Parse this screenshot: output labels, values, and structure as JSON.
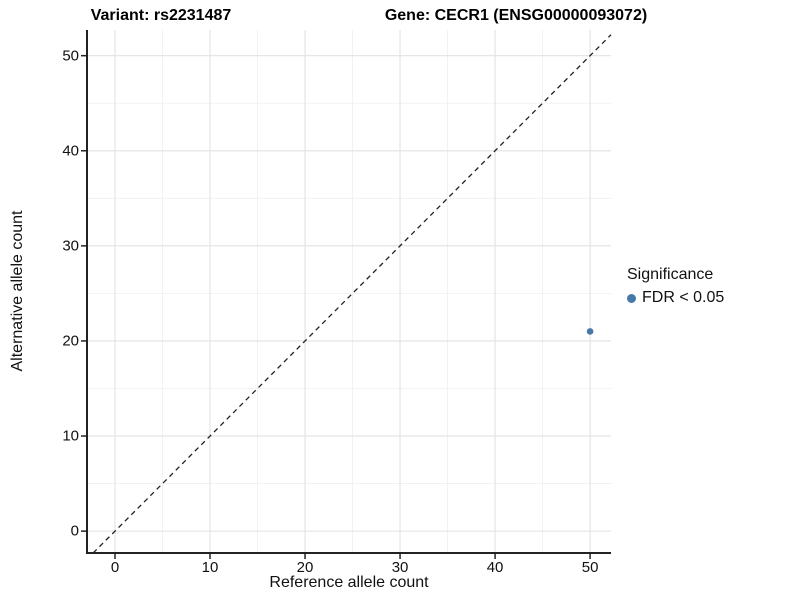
{
  "titles": {
    "variant": "Variant: rs2231487",
    "gene": "Gene: CECR1 (ENSG00000093072)"
  },
  "chart_data": {
    "type": "scatter",
    "title": "Variant: rs2231487   Gene: CECR1 (ENSG00000093072)",
    "xlabel": "Reference allele count",
    "ylabel": "Alternative allele count",
    "x_ticks": [
      0,
      10,
      20,
      30,
      40,
      50
    ],
    "y_ticks": [
      0,
      10,
      20,
      30,
      40,
      50
    ],
    "x_minor_ticks": [
      5,
      15,
      25,
      35,
      45
    ],
    "y_minor_ticks": [
      5,
      15,
      25,
      35,
      45
    ],
    "xlim": [
      -2.84,
      52.2
    ],
    "ylim": [
      -2.3,
      52.7
    ],
    "grid": "major+minor",
    "reference_line": {
      "type": "identity y=x",
      "style": "dashed",
      "color": "#222222"
    },
    "series": [
      {
        "name": "FDR < 0.05",
        "color": "#4678aa",
        "points": [
          {
            "x": 50,
            "y": 21
          }
        ]
      }
    ],
    "legend_position": "right"
  },
  "legend": {
    "title": "Significance",
    "entries": [
      {
        "label": "FDR < 0.05",
        "color": "#4678aa"
      }
    ]
  },
  "colors": {
    "point": "#4678aa",
    "axis_line": "#222222",
    "grid_major": "#e2e2e2",
    "grid_minor": "#efefef",
    "dashed_line": "#222222",
    "background": "#ffffff"
  }
}
